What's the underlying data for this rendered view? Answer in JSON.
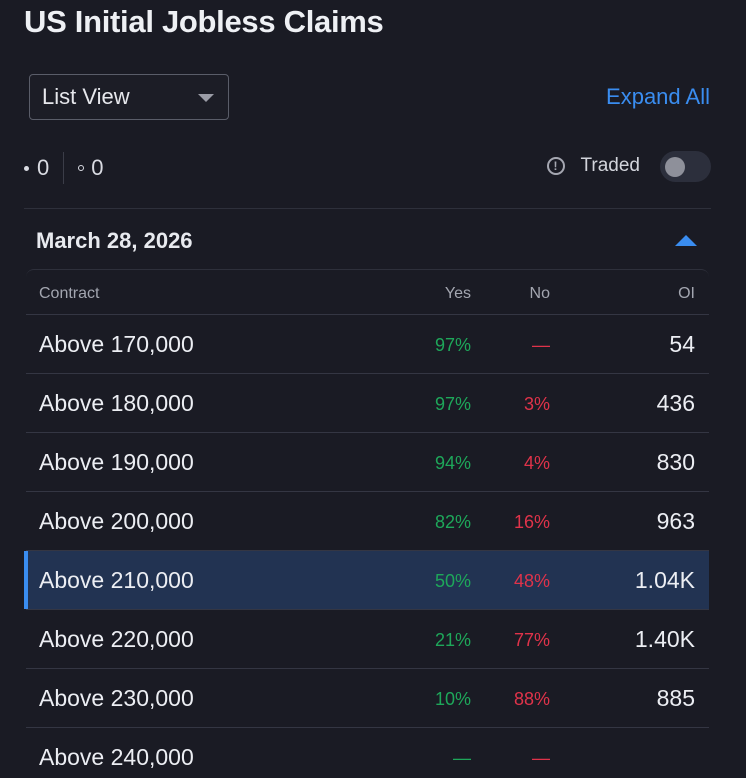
{
  "title": "US Initial Jobless Claims",
  "view_select": {
    "value": "List View"
  },
  "expand_all_label": "Expand All",
  "counts": {
    "filled": "0",
    "open": "0"
  },
  "traded": {
    "label": "Traded",
    "info_glyph": "!",
    "enabled": false
  },
  "group": {
    "date": "March 28, 2026",
    "expanded": true
  },
  "table": {
    "headers": {
      "contract": "Contract",
      "yes": "Yes",
      "no": "No",
      "oi": "OI"
    },
    "rows": [
      {
        "contract": "Above 170,000",
        "yes": "97%",
        "no": "—",
        "oi": "54",
        "selected": false
      },
      {
        "contract": "Above 180,000",
        "yes": "97%",
        "no": "3%",
        "oi": "436",
        "selected": false
      },
      {
        "contract": "Above 190,000",
        "yes": "94%",
        "no": "4%",
        "oi": "830",
        "selected": false
      },
      {
        "contract": "Above 200,000",
        "yes": "82%",
        "no": "16%",
        "oi": "963",
        "selected": false
      },
      {
        "contract": "Above 210,000",
        "yes": "50%",
        "no": "48%",
        "oi": "1.04K",
        "selected": true
      },
      {
        "contract": "Above 220,000",
        "yes": "21%",
        "no": "77%",
        "oi": "1.40K",
        "selected": false
      },
      {
        "contract": "Above 230,000",
        "yes": "10%",
        "no": "88%",
        "oi": "885",
        "selected": false
      },
      {
        "contract": "Above 240,000",
        "yes": "—",
        "no": "—",
        "oi": "",
        "selected": false
      }
    ]
  },
  "colors": {
    "background": "#1a1b24",
    "accent_blue": "#3a8df0",
    "yes_green": "#1ea75a",
    "no_red": "#e0334a",
    "selected_row": "#223352"
  }
}
